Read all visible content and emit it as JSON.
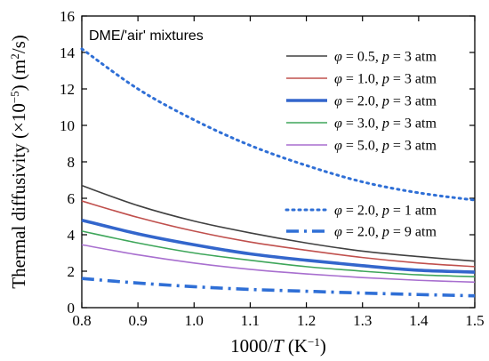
{
  "chart_data": {
    "type": "line",
    "annotation": "DME/'air' mixtures",
    "xlabel_parts": [
      "1000/",
      "T",
      " (K",
      "−1",
      ")"
    ],
    "ylabel_parts": [
      "Thermal diffusivity (×10",
      "−5",
      ") (m",
      "2",
      "/s)"
    ],
    "xlim": [
      0.8,
      1.5
    ],
    "ylim": [
      0,
      16
    ],
    "xticks": [
      "0.8",
      "0.9",
      "1.0",
      "1.1",
      "1.2",
      "1.3",
      "1.4",
      "1.5"
    ],
    "xtick_values": [
      0.8,
      0.9,
      1.0,
      1.1,
      1.2,
      1.3,
      1.4,
      1.5
    ],
    "yticks": [
      "0",
      "2",
      "4",
      "6",
      "8",
      "10",
      "12",
      "14",
      "16"
    ],
    "ytick_values": [
      0,
      2,
      4,
      6,
      8,
      10,
      12,
      14,
      16
    ],
    "grid": false,
    "legend_position": "top-right",
    "x": [
      0.8,
      0.9,
      1.0,
      1.1,
      1.2,
      1.3,
      1.4,
      1.5
    ],
    "series": [
      {
        "phi": "0.5",
        "p": "3 atm",
        "color": "#404040",
        "dash": "solid",
        "width": 1.6,
        "group": 1,
        "values": [
          6.7,
          5.6,
          4.75,
          4.1,
          3.55,
          3.1,
          2.8,
          2.55
        ]
      },
      {
        "phi": "1.0",
        "p": "3 atm",
        "color": "#c0504d",
        "dash": "solid",
        "width": 1.6,
        "group": 1,
        "values": [
          5.85,
          4.95,
          4.2,
          3.6,
          3.15,
          2.75,
          2.45,
          2.25
        ]
      },
      {
        "phi": "2.0",
        "p": "3 atm",
        "color": "#3366cc",
        "dash": "solid",
        "width": 3.6,
        "group": 1,
        "values": [
          4.8,
          4.05,
          3.45,
          2.95,
          2.6,
          2.3,
          2.05,
          1.95
        ]
      },
      {
        "phi": "3.0",
        "p": "3 atm",
        "color": "#3ea65a",
        "dash": "solid",
        "width": 1.6,
        "group": 1,
        "values": [
          4.2,
          3.55,
          3.0,
          2.6,
          2.25,
          2.0,
          1.8,
          1.7
        ]
      },
      {
        "phi": "5.0",
        "p": "3 atm",
        "color": "#a86fcf",
        "dash": "solid",
        "width": 1.6,
        "group": 1,
        "values": [
          3.45,
          2.9,
          2.45,
          2.1,
          1.85,
          1.65,
          1.5,
          1.4
        ]
      },
      {
        "phi": "2.0",
        "p": "1 atm",
        "color": "#2f6fd6",
        "dash": "dot",
        "width": 3,
        "group": 2,
        "values": [
          14.2,
          12.0,
          10.3,
          8.9,
          7.8,
          6.9,
          6.3,
          5.9
        ]
      },
      {
        "phi": "2.0",
        "p": "9 atm",
        "color": "#2f6fd6",
        "dash": "dashdot",
        "width": 3.6,
        "group": 2,
        "values": [
          1.6,
          1.35,
          1.15,
          1.0,
          0.9,
          0.8,
          0.72,
          0.65
        ]
      }
    ]
  }
}
